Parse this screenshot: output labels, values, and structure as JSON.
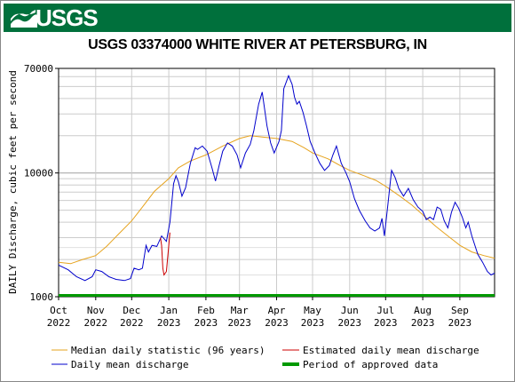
{
  "header": {
    "logo_text": "USGS",
    "title": "USGS 03374000 WHITE RIVER AT PETERSBURG, IN"
  },
  "colors": {
    "banner": "#00703c",
    "median": "#e6a31e",
    "daily": "#0000cc",
    "estimated": "#cc0000",
    "approved": "#009900",
    "grid": "#c8c8c8"
  },
  "chart_data": {
    "type": "line",
    "title": "USGS 03374000 WHITE RIVER AT PETERSBURG, IN",
    "ylabel": "DAILY Discharge, cubic feet per second",
    "xlabel": "",
    "yscale": "log",
    "ylim": [
      1000,
      70000
    ],
    "y_tick_labels": [
      "1000",
      "10000",
      "70000"
    ],
    "y_ticks": [
      1000,
      10000,
      70000
    ],
    "x_range_days": [
      0,
      364
    ],
    "x_tick_labels": [
      {
        "month": "Oct",
        "year": "2022",
        "day": 0
      },
      {
        "month": "Nov",
        "year": "2022",
        "day": 31
      },
      {
        "month": "Dec",
        "year": "2022",
        "day": 61
      },
      {
        "month": "Jan",
        "year": "2023",
        "day": 92
      },
      {
        "month": "Feb",
        "year": "2023",
        "day": 123
      },
      {
        "month": "Mar",
        "year": "2023",
        "day": 151
      },
      {
        "month": "Apr",
        "year": "2023",
        "day": 182
      },
      {
        "month": "May",
        "year": "2023",
        "day": 212
      },
      {
        "month": "Jun",
        "year": "2023",
        "day": 243
      },
      {
        "month": "Jul",
        "year": "2023",
        "day": 273
      },
      {
        "month": "Aug",
        "year": "2023",
        "day": 304
      },
      {
        "month": "Sep",
        "year": "2023",
        "day": 335
      }
    ],
    "grid": true,
    "legend_position": "bottom",
    "series": [
      {
        "name": "Median daily statistic (96 years)",
        "color": "#e6a31e",
        "points": [
          [
            0,
            1900
          ],
          [
            10,
            1850
          ],
          [
            20,
            2000
          ],
          [
            31,
            2150
          ],
          [
            40,
            2550
          ],
          [
            50,
            3200
          ],
          [
            61,
            4100
          ],
          [
            70,
            5300
          ],
          [
            80,
            7100
          ],
          [
            92,
            9000
          ],
          [
            100,
            11000
          ],
          [
            110,
            12500
          ],
          [
            123,
            14000
          ],
          [
            137,
            16500
          ],
          [
            151,
            19000
          ],
          [
            160,
            20000
          ],
          [
            170,
            19500
          ],
          [
            182,
            19000
          ],
          [
            195,
            18000
          ],
          [
            205,
            16000
          ],
          [
            212,
            14500
          ],
          [
            225,
            13000
          ],
          [
            235,
            11500
          ],
          [
            243,
            10500
          ],
          [
            255,
            9500
          ],
          [
            265,
            8700
          ],
          [
            273,
            7800
          ],
          [
            285,
            6500
          ],
          [
            295,
            5500
          ],
          [
            304,
            4600
          ],
          [
            315,
            3700
          ],
          [
            325,
            3100
          ],
          [
            335,
            2600
          ],
          [
            345,
            2300
          ],
          [
            355,
            2150
          ],
          [
            364,
            2050
          ]
        ]
      },
      {
        "name": "Daily mean discharge",
        "color": "#0000cc",
        "points": [
          [
            0,
            1800
          ],
          [
            8,
            1650
          ],
          [
            15,
            1450
          ],
          [
            22,
            1350
          ],
          [
            28,
            1450
          ],
          [
            31,
            1650
          ],
          [
            36,
            1600
          ],
          [
            42,
            1450
          ],
          [
            48,
            1380
          ],
          [
            55,
            1350
          ],
          [
            60,
            1400
          ],
          [
            63,
            1700
          ],
          [
            67,
            1650
          ],
          [
            70,
            1700
          ],
          [
            73,
            2600
          ],
          [
            75,
            2300
          ],
          [
            78,
            2600
          ],
          [
            82,
            2550
          ],
          [
            86,
            3100
          ],
          [
            90,
            2800
          ],
          [
            93,
            4000
          ],
          [
            96,
            8200
          ],
          [
            98,
            9500
          ],
          [
            100,
            8500
          ],
          [
            103,
            6500
          ],
          [
            106,
            7600
          ],
          [
            110,
            12000
          ],
          [
            114,
            16000
          ],
          [
            116,
            15500
          ],
          [
            120,
            16500
          ],
          [
            124,
            15000
          ],
          [
            128,
            11000
          ],
          [
            131,
            8600
          ],
          [
            134,
            11500
          ],
          [
            137,
            15000
          ],
          [
            141,
            17500
          ],
          [
            145,
            16500
          ],
          [
            149,
            14000
          ],
          [
            152,
            11000
          ],
          [
            156,
            14500
          ],
          [
            160,
            17000
          ],
          [
            163,
            22000
          ],
          [
            167,
            36000
          ],
          [
            170,
            45000
          ],
          [
            174,
            24000
          ],
          [
            177,
            17500
          ],
          [
            180,
            14500
          ],
          [
            184,
            18000
          ],
          [
            186,
            22000
          ],
          [
            188,
            48000
          ],
          [
            192,
            61000
          ],
          [
            195,
            52000
          ],
          [
            197,
            41000
          ],
          [
            199,
            36000
          ],
          [
            201,
            38000
          ],
          [
            204,
            31000
          ],
          [
            207,
            24000
          ],
          [
            210,
            18000
          ],
          [
            214,
            14500
          ],
          [
            218,
            12000
          ],
          [
            222,
            10500
          ],
          [
            226,
            11500
          ],
          [
            229,
            14000
          ],
          [
            232,
            16500
          ],
          [
            236,
            12000
          ],
          [
            240,
            10000
          ],
          [
            243,
            8500
          ],
          [
            247,
            6200
          ],
          [
            251,
            5000
          ],
          [
            256,
            4100
          ],
          [
            260,
            3600
          ],
          [
            264,
            3400
          ],
          [
            268,
            3600
          ],
          [
            270,
            4300
          ],
          [
            272,
            3100
          ],
          [
            275,
            5600
          ],
          [
            278,
            10500
          ],
          [
            281,
            9200
          ],
          [
            284,
            7500
          ],
          [
            288,
            6500
          ],
          [
            292,
            7500
          ],
          [
            296,
            6100
          ],
          [
            300,
            5300
          ],
          [
            304,
            4900
          ],
          [
            307,
            4200
          ],
          [
            310,
            4400
          ],
          [
            313,
            4200
          ],
          [
            316,
            5300
          ],
          [
            319,
            5100
          ],
          [
            322,
            4100
          ],
          [
            325,
            3600
          ],
          [
            328,
            4800
          ],
          [
            331,
            5800
          ],
          [
            334,
            5200
          ],
          [
            337,
            4400
          ],
          [
            340,
            3600
          ],
          [
            342,
            4000
          ],
          [
            345,
            3100
          ],
          [
            350,
            2200
          ],
          [
            354,
            1900
          ],
          [
            358,
            1600
          ],
          [
            361,
            1500
          ],
          [
            364,
            1550
          ]
        ]
      },
      {
        "name": "Estimated daily mean discharge",
        "color": "#cc0000",
        "points": [
          [
            85,
            3000
          ],
          [
            86,
            2600
          ],
          [
            87,
            1700
          ],
          [
            88,
            1500
          ],
          [
            90,
            1600
          ],
          [
            92,
            2600
          ],
          [
            93,
            3300
          ]
        ]
      }
    ],
    "approved_period": {
      "name": "Period of approved data",
      "start_day": 0,
      "end_day": 364,
      "color": "#009900"
    }
  },
  "legend": {
    "median": "Median daily statistic (96 years)",
    "estimated": "Estimated daily mean discharge",
    "daily": "Daily mean discharge",
    "approved": "Period of approved data"
  }
}
